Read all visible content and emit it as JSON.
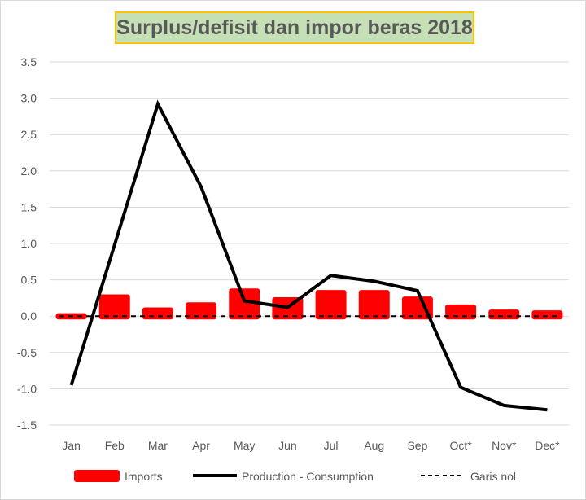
{
  "chart_data": {
    "type": "bar+line",
    "title": "Surplus/defisit dan impor beras 2018",
    "categories": [
      "Jan",
      "Feb",
      "Mar",
      "Apr",
      "May",
      "Jun",
      "Jul",
      "Aug",
      "Sep",
      "Oct*",
      "Nov*",
      "Dec*"
    ],
    "yticks": [
      "3.5",
      "3.0",
      "2.5",
      "2.0",
      "1.5",
      "1.0",
      "0.5",
      "0.0",
      "-0.5",
      "-1.0",
      "-1.5"
    ],
    "ylim": [
      -1.5,
      3.5
    ],
    "grid": true,
    "legend_position": "bottom",
    "series": [
      {
        "name": "Imports",
        "type": "bar",
        "color": "#ff0000",
        "values": [
          0.04,
          0.3,
          0.12,
          0.19,
          0.38,
          0.26,
          0.36,
          0.36,
          0.27,
          0.16,
          0.09,
          0.08
        ]
      },
      {
        "name": "Production - Consumption",
        "type": "line",
        "color": "#000000",
        "values": [
          -0.95,
          0.98,
          2.92,
          1.78,
          0.21,
          0.12,
          0.56,
          0.48,
          0.35,
          -0.98,
          -1.23,
          -1.29
        ]
      },
      {
        "name": "Garis nol",
        "type": "dashed-line",
        "color": "#000000",
        "values": [
          0,
          0,
          0,
          0,
          0,
          0,
          0,
          0,
          0,
          0,
          0,
          0
        ]
      }
    ]
  }
}
